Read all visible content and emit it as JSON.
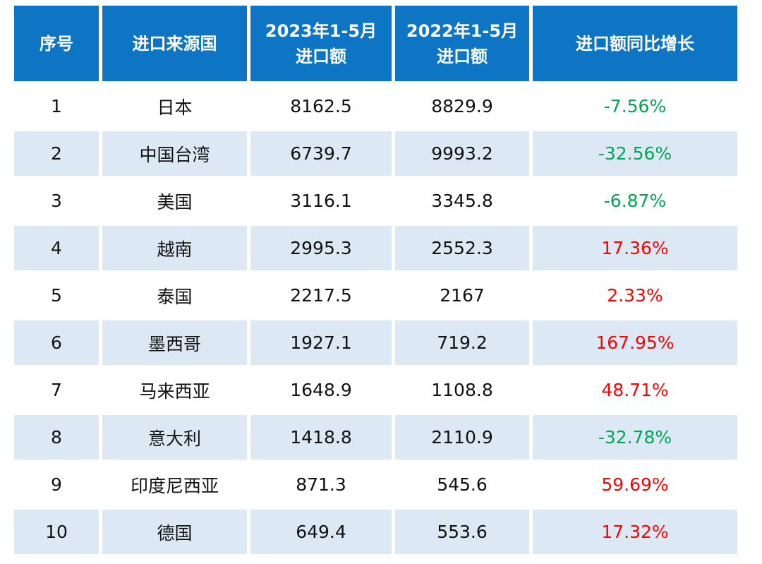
{
  "table": {
    "columns": [
      {
        "key": "index",
        "label": "序号"
      },
      {
        "key": "country",
        "label": "进口来源国"
      },
      {
        "key": "amount_2023",
        "label": "2023年1-5月进口额"
      },
      {
        "key": "amount_2022",
        "label": "2022年1-5月进口额"
      },
      {
        "key": "growth",
        "label": "进口额同比增长"
      }
    ],
    "rows": [
      {
        "index": "1",
        "country": "日本",
        "amount_2023": "8162.5",
        "amount_2022": "8829.9",
        "growth": "-7.56%"
      },
      {
        "index": "2",
        "country": "中国台湾",
        "amount_2023": "6739.7",
        "amount_2022": "9993.2",
        "growth": "-32.56%"
      },
      {
        "index": "3",
        "country": "美国",
        "amount_2023": "3116.1",
        "amount_2022": "3345.8",
        "growth": "-6.87%"
      },
      {
        "index": "4",
        "country": "越南",
        "amount_2023": "2995.3",
        "amount_2022": "2552.3",
        "growth": "17.36%"
      },
      {
        "index": "5",
        "country": "泰国",
        "amount_2023": "2217.5",
        "amount_2022": "2167",
        "growth": "2.33%"
      },
      {
        "index": "6",
        "country": "墨西哥",
        "amount_2023": "1927.1",
        "amount_2022": "719.2",
        "growth": "167.95%"
      },
      {
        "index": "7",
        "country": "马来西亚",
        "amount_2023": "1648.9",
        "amount_2022": "1108.8",
        "growth": "48.71%"
      },
      {
        "index": "8",
        "country": "意大利",
        "amount_2023": "1418.8",
        "amount_2022": "2110.9",
        "growth": "-32.78%"
      },
      {
        "index": "9",
        "country": "印度尼西亚",
        "amount_2023": "871.3",
        "amount_2022": "545.6",
        "growth": "59.69%"
      },
      {
        "index": "10",
        "country": "德国",
        "amount_2023": "649.4",
        "amount_2022": "553.6",
        "growth": "17.32%"
      }
    ]
  },
  "colors": {
    "header_bg": "#0d75c4",
    "header_text": "#ffffff",
    "row_bg": "#ffffff",
    "row_alt_bg": "#dce9f5",
    "body_text": "#111111",
    "growth_positive": "#fe0000",
    "growth_negative": "#00a651"
  },
  "chart_data": {
    "type": "table",
    "title": "",
    "columns": [
      "序号",
      "进口来源国",
      "2023年1-5月进口额",
      "2022年1-5月进口额",
      "进口额同比增长"
    ],
    "rows": [
      [
        "1",
        "日本",
        8162.5,
        8829.9,
        "-7.56%"
      ],
      [
        "2",
        "中国台湾",
        6739.7,
        9993.2,
        "-32.56%"
      ],
      [
        "3",
        "美国",
        3116.1,
        3345.8,
        "-6.87%"
      ],
      [
        "4",
        "越南",
        2995.3,
        2552.3,
        "17.36%"
      ],
      [
        "5",
        "泰国",
        2217.5,
        2167,
        "2.33%"
      ],
      [
        "6",
        "墨西哥",
        1927.1,
        719.2,
        "167.95%"
      ],
      [
        "7",
        "马来西亚",
        1648.9,
        1108.8,
        "48.71%"
      ],
      [
        "8",
        "意大利",
        1418.8,
        2110.9,
        "-32.78%"
      ],
      [
        "9",
        "印度尼西亚",
        871.3,
        545.6,
        "59.69%"
      ],
      [
        "10",
        "德国",
        649.4,
        553.6,
        "17.32%"
      ]
    ],
    "notes": "negative growth rendered green, positive growth rendered red; rows alternate white / light-blue backgrounds"
  }
}
